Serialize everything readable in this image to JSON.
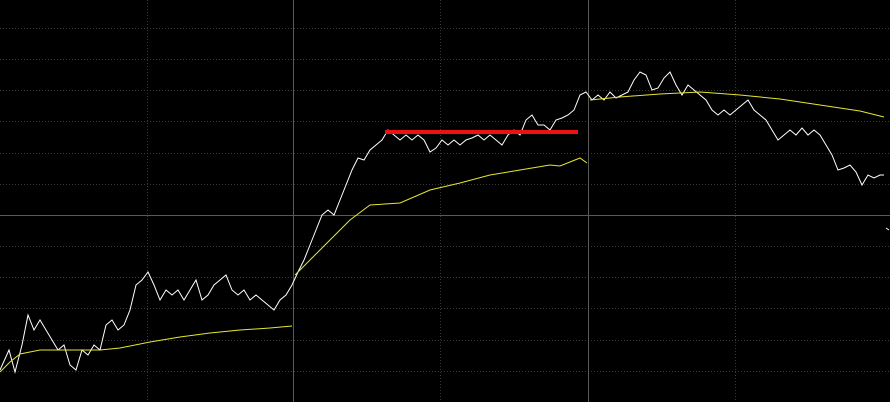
{
  "chart_data": {
    "type": "line",
    "xlim": [
      0,
      890
    ],
    "ylim": [
      0,
      402
    ],
    "xticks": [
      147,
      293,
      440,
      588,
      735
    ],
    "yticks": [
      31,
      62,
      94,
      125,
      156,
      187,
      218,
      249,
      281,
      312,
      343,
      374
    ],
    "grid": true,
    "solid_xtick_index": [
      1,
      3
    ],
    "solid_ytick_index": [
      5
    ],
    "background": "#000000",
    "series": [
      {
        "color": "#ffffff",
        "x": [
          0,
          9,
          15,
          22,
          28,
          34,
          40,
          46,
          52,
          58,
          64,
          70,
          76,
          82,
          88,
          94,
          100,
          106,
          112,
          118,
          124,
          130,
          136,
          142,
          148,
          154,
          160,
          166,
          172,
          178,
          184,
          190,
          196,
          202,
          208,
          214,
          220,
          226,
          232,
          238,
          244,
          250,
          256,
          262,
          268,
          274,
          280,
          286,
          292,
          298,
          304,
          310,
          316,
          322,
          328,
          334,
          340,
          346,
          352,
          358,
          364,
          370,
          376,
          382,
          388,
          394,
          400,
          406,
          412,
          418,
          424,
          430,
          436,
          442,
          448,
          454,
          460,
          466,
          472,
          478,
          484,
          490,
          496,
          502,
          508,
          514,
          520,
          526,
          532,
          538,
          544,
          550,
          556,
          562,
          568,
          574,
          580,
          586,
          592,
          598,
          604,
          610,
          616,
          622,
          628,
          634,
          640,
          646,
          652,
          658,
          664,
          670,
          676,
          682,
          688,
          694,
          700,
          706,
          712,
          718,
          724,
          730,
          736,
          742,
          748,
          754,
          760,
          766,
          772,
          778,
          784,
          790,
          796,
          802,
          808,
          814,
          820,
          826,
          832,
          838,
          844,
          850,
          856,
          862,
          868,
          874,
          880,
          884,
          885,
          886,
          889
        ],
        "values": [
          32,
          52,
          30,
          57,
          87,
          72,
          82,
          72,
          62,
          52,
          57,
          37,
          32,
          52,
          47,
          57,
          52,
          77,
          82,
          72,
          77,
          92,
          117,
          122,
          130,
          117,
          102,
          112,
          107,
          112,
          102,
          112,
          122,
          102,
          107,
          117,
          122,
          127,
          112,
          107,
          112,
          102,
          107,
          102,
          97,
          92,
          102,
          107,
          117,
          130,
          142,
          157,
          172,
          187,
          192,
          187,
          202,
          217,
          232,
          244,
          242,
          252,
          257,
          262,
          272,
          267,
          262,
          267,
          262,
          267,
          262,
          250,
          254,
          262,
          257,
          262,
          257,
          262,
          264,
          267,
          262,
          267,
          262,
          257,
          267,
          272,
          267,
          282,
          287,
          277,
          277,
          272,
          282,
          284,
          287,
          292,
          307,
          310,
          302,
          307,
          302,
          310,
          304,
          307,
          310,
          322,
          330,
          327,
          312,
          314,
          324,
          330,
          317,
          307,
          317,
          312,
          307,
          302,
          292,
          287,
          292,
          287,
          292,
          297,
          302,
          292,
          287,
          282,
          272,
          262,
          267,
          272,
          267,
          274,
          267,
          272,
          267,
          257,
          247,
          232,
          234,
          237,
          230,
          217,
          227,
          224,
          227,
          227,
          null,
          174,
          172
        ]
      },
      {
        "color": "#e6e632",
        "x": [
          0,
          10,
          20,
          40,
          60,
          80,
          100,
          120,
          150,
          180,
          210,
          240,
          270,
          292,
          293,
          295,
          310,
          330,
          350,
          370,
          400,
          430,
          460,
          490,
          520,
          550,
          560,
          580,
          587,
          588,
          590,
          620,
          660,
          700,
          740,
          780,
          820,
          860,
          884
        ],
        "values": [
          30,
          40,
          48,
          52,
          52,
          52,
          52,
          54,
          60,
          65,
          69,
          72,
          74,
          76,
          null,
          127,
          142,
          162,
          182,
          197,
          199,
          212,
          219,
          227,
          232,
          237,
          236,
          244,
          239,
          null,
          302,
          305,
          308,
          310,
          307,
          303,
          297,
          291,
          285
        ]
      }
    ],
    "reference_lines": [
      {
        "value": 270,
        "xrange": [
          385,
          578
        ],
        "color": "#ee1111"
      }
    ]
  }
}
